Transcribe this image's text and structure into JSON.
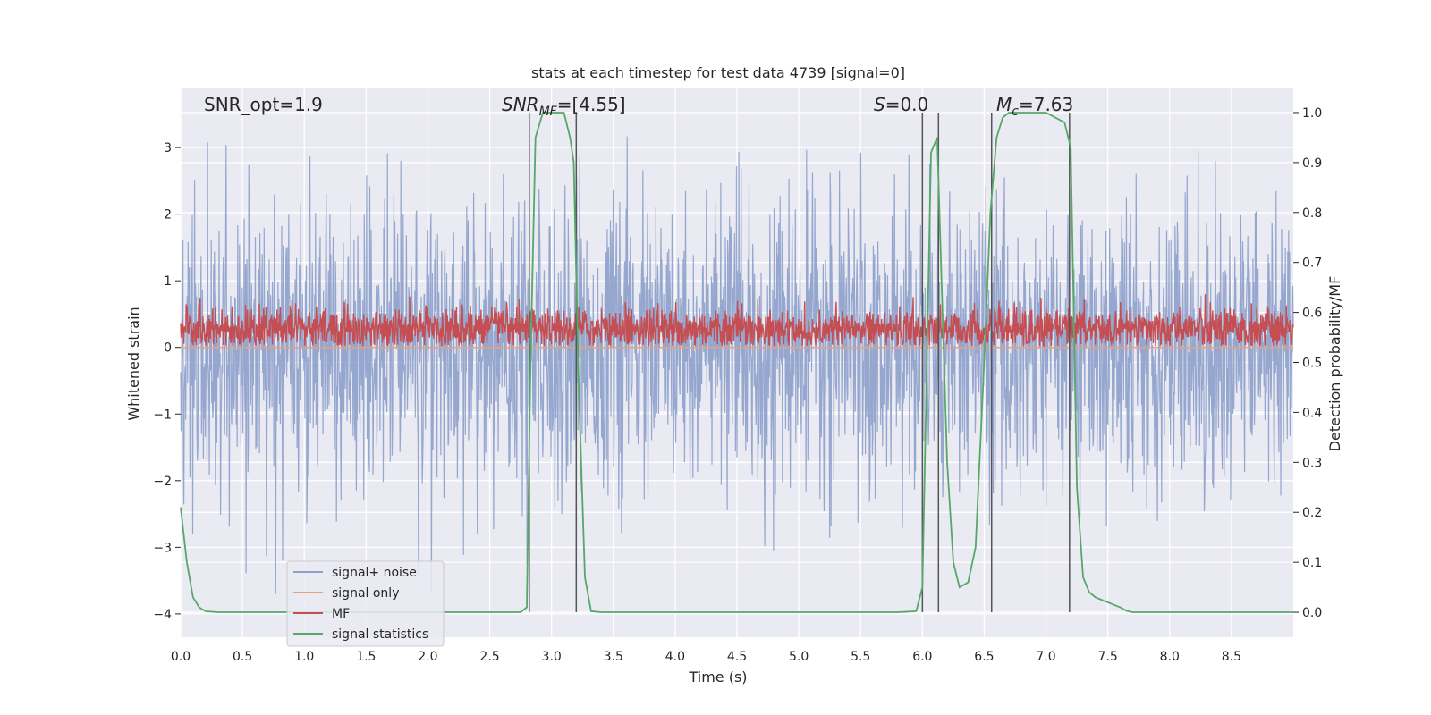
{
  "chart_data": {
    "type": "line",
    "title": "stats at each timestep for test data 4739 [signal=0]",
    "xlabel": "Time (s)",
    "ylabel_left": "Whitened strain",
    "ylabel_right": "Detection probability/MF",
    "xlim": [
      0,
      9.0
    ],
    "ylim_left": [
      -4.35,
      3.9
    ],
    "ylim_right": [
      -0.05,
      1.05
    ],
    "x_ticks": [
      "0.0",
      "0.5",
      "1.0",
      "1.5",
      "2.0",
      "2.5",
      "3.0",
      "3.5",
      "4.0",
      "4.5",
      "5.0",
      "5.5",
      "6.0",
      "6.5",
      "7.0",
      "7.5",
      "8.0",
      "8.5"
    ],
    "y_ticks_left": [
      "3",
      "2",
      "1",
      "0",
      "−1",
      "−2",
      "−3",
      "−4"
    ],
    "y_ticks_right": [
      "1.0",
      "0.9",
      "0.8",
      "0.7",
      "0.6",
      "0.5",
      "0.4",
      "0.3",
      "0.2",
      "0.1",
      "0.0"
    ],
    "grid": true,
    "legend_position": "lower-left",
    "annotations": {
      "snr_opt": "SNR_opt=1.9",
      "snr_mf_a": "SNR",
      "snr_mf_b": "MF",
      "snr_mf_c": "=[4.55]",
      "s_a": "S",
      "s_b": "=0.0",
      "mc_a": "M",
      "mc_b": "c",
      "mc_c": "=7.63"
    },
    "vertical_lines_x": [
      2.82,
      3.2,
      6.0,
      6.13,
      6.56,
      7.19
    ],
    "series": [
      {
        "name": "signal+ noise",
        "color": "#8da0cb",
        "axis": "left",
        "description_range": [
          -3.7,
          3.3
        ]
      },
      {
        "name": "signal only",
        "color": "#e8a07f",
        "axis": "left",
        "values_note": "flat at 0"
      },
      {
        "name": "MF",
        "color": "#c44e52",
        "axis": "left",
        "range": [
          0,
          1.0
        ]
      },
      {
        "name": "signal statistics",
        "color": "#55a868",
        "axis": "right",
        "x": [
          0.0,
          0.05,
          0.1,
          0.15,
          0.2,
          0.3,
          0.5,
          1.0,
          2.0,
          2.5,
          2.75,
          2.8,
          2.83,
          2.87,
          2.93,
          3.0,
          3.1,
          3.15,
          3.18,
          3.22,
          3.27,
          3.32,
          3.4,
          4.0,
          5.0,
          5.8,
          5.95,
          6.0,
          6.07,
          6.12,
          6.15,
          6.2,
          6.25,
          6.3,
          6.37,
          6.43,
          6.5,
          6.55,
          6.6,
          6.65,
          6.7,
          6.8,
          7.0,
          7.15,
          7.2,
          7.25,
          7.3,
          7.35,
          7.4,
          7.5,
          7.6,
          7.65,
          7.7,
          8.0,
          9.0
        ],
        "values": [
          0.21,
          0.1,
          0.03,
          0.01,
          0.002,
          0.0,
          0.0,
          0.0,
          0.0,
          0.0,
          0.0,
          0.01,
          0.5,
          0.95,
          1.0,
          1.0,
          1.0,
          0.95,
          0.9,
          0.45,
          0.07,
          0.002,
          0.0,
          0.0,
          0.0,
          0.0,
          0.002,
          0.05,
          0.92,
          0.95,
          0.7,
          0.3,
          0.1,
          0.05,
          0.06,
          0.13,
          0.5,
          0.8,
          0.95,
          0.99,
          1.0,
          1.0,
          1.0,
          0.98,
          0.93,
          0.25,
          0.07,
          0.04,
          0.03,
          0.02,
          0.01,
          0.003,
          0.0,
          0.0,
          0.0
        ]
      }
    ]
  }
}
